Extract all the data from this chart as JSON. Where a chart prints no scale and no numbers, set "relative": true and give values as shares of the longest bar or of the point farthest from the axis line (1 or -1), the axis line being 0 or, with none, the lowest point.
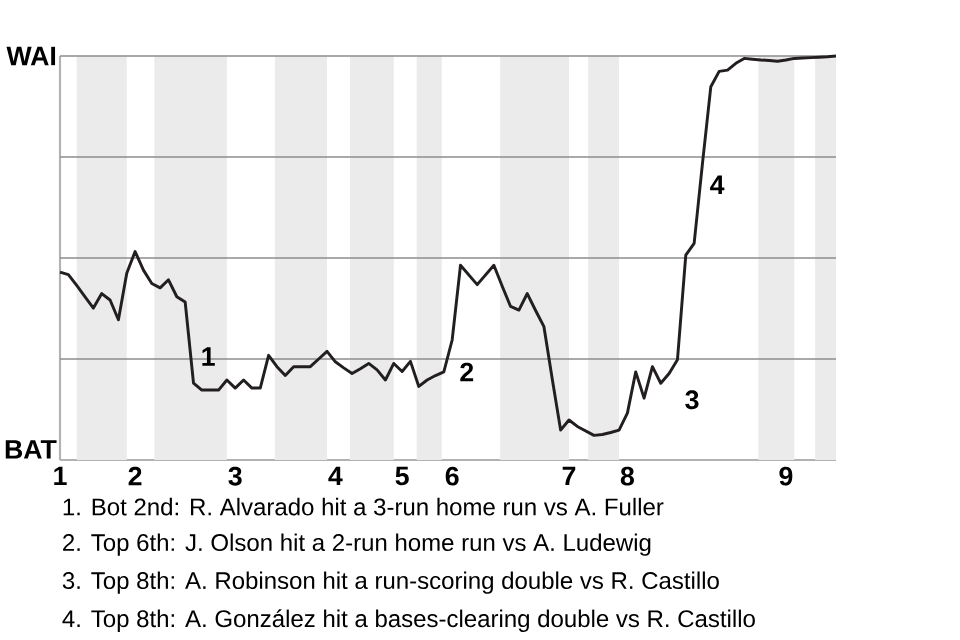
{
  "chart_data": {
    "type": "line",
    "relative": true,
    "color": "#231f20",
    "line_style": "solid",
    "categories": [
      "1",
      null,
      null,
      null,
      null,
      null,
      null,
      null,
      null,
      "2",
      null,
      null,
      null,
      null,
      null,
      null,
      null,
      null,
      null,
      null,
      null,
      "3",
      null,
      null,
      null,
      null,
      null,
      null,
      null,
      null,
      null,
      null,
      null,
      "4",
      null,
      null,
      null,
      null,
      null,
      null,
      null,
      "5",
      null,
      null,
      null,
      null,
      null,
      "6",
      null,
      null,
      null,
      null,
      null,
      null,
      null,
      null,
      null,
      null,
      null,
      null,
      null,
      "7",
      null,
      null,
      null,
      null,
      null,
      null,
      "8",
      null,
      null,
      null,
      null,
      null,
      null,
      null,
      null,
      null,
      null,
      null,
      null,
      null,
      null,
      null,
      null,
      null,
      null,
      "9",
      null,
      null,
      null,
      null,
      null,
      null
    ],
    "values": [
      0.465,
      0.459,
      0.432,
      0.404,
      0.376,
      0.412,
      0.396,
      0.347,
      0.462,
      0.516,
      0.47,
      0.437,
      0.426,
      0.446,
      0.404,
      0.391,
      0.19,
      0.173,
      0.173,
      0.173,
      0.198,
      0.178,
      0.198,
      0.178,
      0.178,
      0.259,
      0.231,
      0.209,
      0.231,
      0.231,
      0.231,
      0.25,
      0.269,
      0.243,
      0.228,
      0.214,
      0.226,
      0.239,
      0.223,
      0.198,
      0.239,
      0.219,
      0.244,
      0.182,
      0.198,
      0.209,
      0.218,
      0.297,
      0.482,
      0.458,
      0.434,
      0.458,
      0.482,
      0.43,
      0.38,
      0.371,
      0.412,
      0.37,
      0.33,
      0.2,
      0.074,
      0.099,
      0.083,
      0.072,
      0.061,
      0.063,
      0.068,
      0.074,
      0.116,
      0.218,
      0.153,
      0.231,
      0.19,
      0.214,
      0.248,
      0.507,
      0.536,
      0.734,
      0.924,
      0.962,
      0.965,
      0.982,
      0.994,
      0.992,
      0.99,
      0.989,
      0.987,
      0.99,
      0.994,
      0.995,
      0.996,
      0.997,
      0.998,
      1
    ],
    "ref_lines": [
      {
        "axis": "y",
        "value": 0.25,
        "color": "#8c8c8c"
      },
      {
        "axis": "y",
        "value": 0.5,
        "color": "#8c8c8c"
      },
      {
        "axis": "y",
        "value": 0.75,
        "color": "#8c8c8c"
      },
      {
        "axis": "y",
        "value": 1,
        "color": "#8c8c8c"
      }
    ],
    "annotations": [
      "WAI",
      "BAT",
      "1",
      "2",
      "3",
      "4",
      "1. Bot 2nd: R. Alvarado hit a 3-run home run vs A. Fuller",
      "2. Top 6th: J. Olson hit a 2-run home run vs A. Ludewig",
      "3. Top 8th: A. Robinson hit a run-scoring double vs R. Castillo",
      "4. Top 8th: A. González hit a bases-clearing double vs R. Castillo"
    ]
  }
}
